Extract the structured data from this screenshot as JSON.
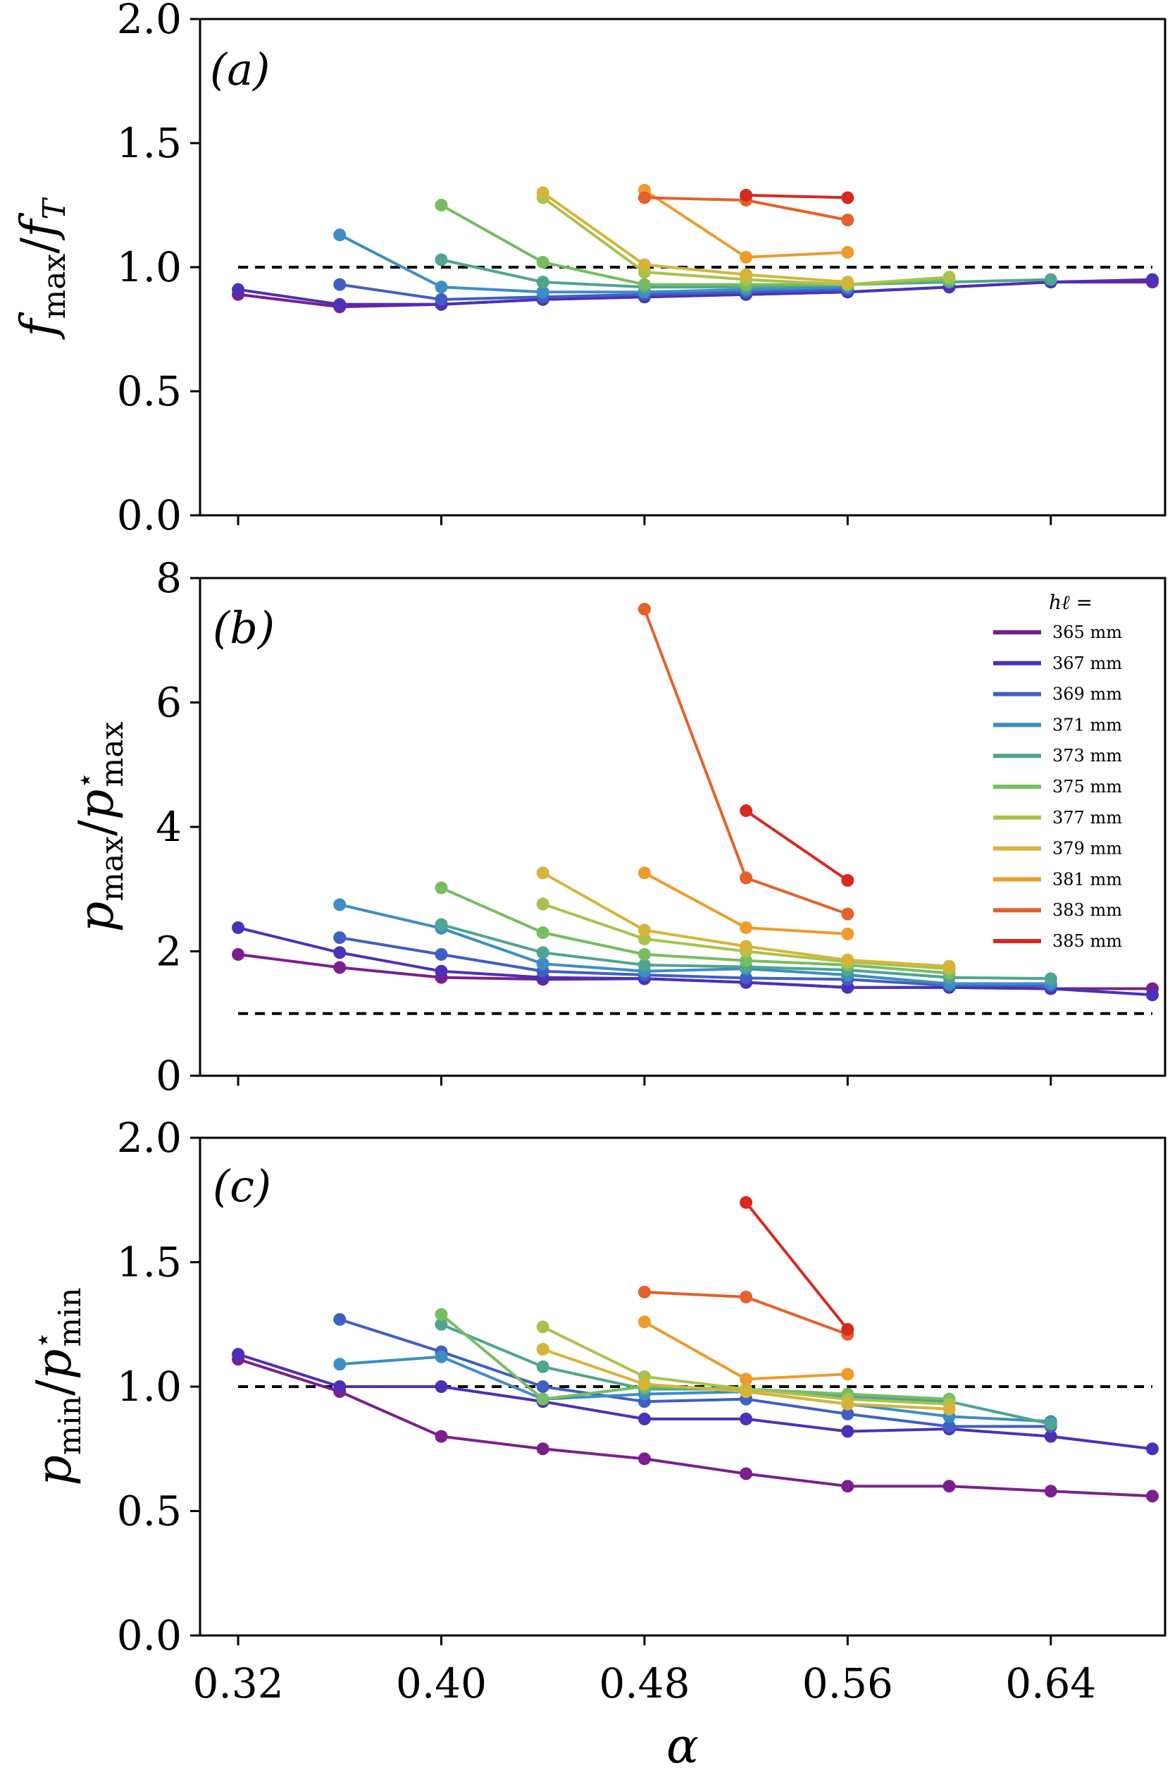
{
  "colors": {
    "365": "#7b1f8e",
    "367": "#4a31b8",
    "369": "#3f5fc2",
    "371": "#3c8ec4",
    "373": "#4fa58f",
    "375": "#76bd62",
    "377": "#a9c24b",
    "379": "#d6b43a",
    "381": "#ee9b2c",
    "383": "#e5602a",
    "385": "#d8281f",
    "reference": "#000000"
  },
  "xaxis": {
    "label": "α",
    "ticks": [
      "0.32",
      "0.40",
      "0.48",
      "0.56",
      "0.64"
    ],
    "lim": [
      0.305,
      0.685
    ]
  },
  "legend": {
    "title": "hℓ =",
    "entries": [
      "365 mm",
      "367 mm",
      "369 mm",
      "371 mm",
      "373 mm",
      "375 mm",
      "377 mm",
      "379 mm",
      "381 mm",
      "383 mm",
      "385 mm"
    ]
  },
  "chart_data": [
    {
      "type": "line",
      "panel": "(a)",
      "ylabel": "fmax/fT",
      "ylim": [
        0,
        2
      ],
      "yticks": [
        "0.0",
        "0.5",
        "1.0",
        "1.5",
        "2.0"
      ],
      "reference_line": 1.0,
      "series": [
        {
          "name": "365 mm",
          "color_key": "365",
          "x": [
            0.32,
            0.36,
            0.4,
            0.44,
            0.48,
            0.52,
            0.56,
            0.6,
            0.64,
            0.68
          ],
          "y": [
            0.89,
            0.84,
            0.85,
            0.87,
            0.88,
            0.89,
            0.9,
            0.92,
            0.94,
            0.94
          ]
        },
        {
          "name": "367 mm",
          "color_key": "367",
          "x": [
            0.32,
            0.36,
            0.4,
            0.44,
            0.48,
            0.52,
            0.56,
            0.6,
            0.64,
            0.68
          ],
          "y": [
            0.91,
            0.85,
            0.85,
            0.87,
            0.88,
            0.89,
            0.9,
            0.92,
            0.94,
            0.95
          ]
        },
        {
          "name": "369 mm",
          "color_key": "369",
          "x": [
            0.36,
            0.4,
            0.44,
            0.48,
            0.52,
            0.56
          ],
          "y": [
            0.93,
            0.87,
            0.88,
            0.89,
            0.9,
            0.91
          ]
        },
        {
          "name": "371 mm",
          "color_key": "371",
          "x": [
            0.36,
            0.4,
            0.44,
            0.48,
            0.52,
            0.56
          ],
          "y": [
            1.13,
            0.92,
            0.9,
            0.9,
            0.91,
            0.92
          ]
        },
        {
          "name": "373 mm",
          "color_key": "373",
          "x": [
            0.4,
            0.44,
            0.48,
            0.52,
            0.56,
            0.6,
            0.64
          ],
          "y": [
            1.03,
            0.94,
            0.92,
            0.92,
            0.93,
            0.94,
            0.95
          ]
        },
        {
          "name": "375 mm",
          "color_key": "375",
          "x": [
            0.4,
            0.44,
            0.48,
            0.52,
            0.56,
            0.6
          ],
          "y": [
            1.25,
            1.02,
            0.93,
            0.93,
            0.93,
            0.95
          ]
        },
        {
          "name": "377 mm",
          "color_key": "377",
          "x": [
            0.44,
            0.48,
            0.52,
            0.56,
            0.6
          ],
          "y": [
            1.28,
            0.98,
            0.95,
            0.93,
            0.96
          ]
        },
        {
          "name": "379 mm",
          "color_key": "379",
          "x": [
            0.44,
            0.48,
            0.52,
            0.56
          ],
          "y": [
            1.3,
            1.01,
            0.97,
            0.94
          ]
        },
        {
          "name": "381 mm",
          "color_key": "381",
          "x": [
            0.48,
            0.52,
            0.56
          ],
          "y": [
            1.31,
            1.04,
            1.06
          ]
        },
        {
          "name": "383 mm",
          "color_key": "383",
          "x": [
            0.48,
            0.52,
            0.56
          ],
          "y": [
            1.28,
            1.27,
            1.19
          ]
        },
        {
          "name": "385 mm",
          "color_key": "385",
          "x": [
            0.52,
            0.56
          ],
          "y": [
            1.29,
            1.28
          ]
        }
      ]
    },
    {
      "type": "line",
      "panel": "(b)",
      "ylabel": "pmax/p⋆max",
      "ylim": [
        0,
        8
      ],
      "yticks": [
        "0",
        "2",
        "4",
        "6",
        "8"
      ],
      "reference_line": 1.0,
      "series": [
        {
          "name": "365 mm",
          "color_key": "365",
          "x": [
            0.32,
            0.36,
            0.4,
            0.44,
            0.48,
            0.52,
            0.56,
            0.6,
            0.64,
            0.68
          ],
          "y": [
            1.95,
            1.74,
            1.58,
            1.55,
            1.56,
            1.5,
            1.42,
            1.42,
            1.4,
            1.4
          ]
        },
        {
          "name": "367 mm",
          "color_key": "367",
          "x": [
            0.32,
            0.36,
            0.4,
            0.44,
            0.48,
            0.52,
            0.56,
            0.6,
            0.64,
            0.68
          ],
          "y": [
            2.38,
            1.98,
            1.68,
            1.58,
            1.56,
            1.5,
            1.42,
            1.42,
            1.4,
            1.3
          ]
        },
        {
          "name": "369 mm",
          "color_key": "369",
          "x": [
            0.36,
            0.4,
            0.44,
            0.48,
            0.52,
            0.56,
            0.6,
            0.64
          ],
          "y": [
            2.22,
            1.95,
            1.68,
            1.62,
            1.57,
            1.55,
            1.45,
            1.45
          ]
        },
        {
          "name": "371 mm",
          "color_key": "371",
          "x": [
            0.36,
            0.4,
            0.44,
            0.48,
            0.52,
            0.56,
            0.6,
            0.64
          ],
          "y": [
            2.75,
            2.37,
            1.8,
            1.68,
            1.72,
            1.62,
            1.48,
            1.48
          ]
        },
        {
          "name": "373 mm",
          "color_key": "373",
          "x": [
            0.4,
            0.44,
            0.48,
            0.52,
            0.56,
            0.6,
            0.64
          ],
          "y": [
            2.43,
            1.98,
            1.78,
            1.75,
            1.7,
            1.58,
            1.56
          ]
        },
        {
          "name": "375 mm",
          "color_key": "375",
          "x": [
            0.4,
            0.44,
            0.48,
            0.52,
            0.56,
            0.6
          ],
          "y": [
            3.02,
            2.3,
            1.95,
            1.85,
            1.78,
            1.65
          ]
        },
        {
          "name": "377 mm",
          "color_key": "377",
          "x": [
            0.44,
            0.48,
            0.52,
            0.56,
            0.6
          ],
          "y": [
            2.76,
            2.2,
            2.0,
            1.83,
            1.72
          ]
        },
        {
          "name": "379 mm",
          "color_key": "379",
          "x": [
            0.44,
            0.48,
            0.52,
            0.56,
            0.6
          ],
          "y": [
            3.26,
            2.34,
            2.08,
            1.86,
            1.76
          ]
        },
        {
          "name": "381 mm",
          "color_key": "381",
          "x": [
            0.48,
            0.52,
            0.56
          ],
          "y": [
            3.26,
            2.38,
            2.28
          ]
        },
        {
          "name": "383 mm",
          "color_key": "383",
          "x": [
            0.48,
            0.52,
            0.56
          ],
          "y": [
            7.5,
            3.18,
            2.6
          ]
        },
        {
          "name": "385 mm",
          "color_key": "385",
          "x": [
            0.52,
            0.56
          ],
          "y": [
            4.26,
            3.14
          ]
        }
      ]
    },
    {
      "type": "line",
      "panel": "(c)",
      "ylabel": "pmin/p⋆min",
      "ylim": [
        0,
        2
      ],
      "yticks": [
        "0.0",
        "0.5",
        "1.0",
        "1.5",
        "2.0"
      ],
      "reference_line": 1.0,
      "series": [
        {
          "name": "365 mm",
          "color_key": "365",
          "x": [
            0.32,
            0.36,
            0.4,
            0.44,
            0.48,
            0.52,
            0.56,
            0.6,
            0.64,
            0.68
          ],
          "y": [
            1.11,
            0.98,
            0.8,
            0.75,
            0.71,
            0.65,
            0.6,
            0.6,
            0.58,
            0.56
          ]
        },
        {
          "name": "367 mm",
          "color_key": "367",
          "x": [
            0.32,
            0.36,
            0.4,
            0.44,
            0.48,
            0.52,
            0.56,
            0.6,
            0.64,
            0.68
          ],
          "y": [
            1.13,
            1.0,
            1.0,
            0.94,
            0.87,
            0.87,
            0.82,
            0.83,
            0.8,
            0.75
          ]
        },
        {
          "name": "369 mm",
          "color_key": "369",
          "x": [
            0.36,
            0.4,
            0.44,
            0.48,
            0.52,
            0.56,
            0.6,
            0.64
          ],
          "y": [
            1.27,
            1.14,
            1.0,
            0.94,
            0.95,
            0.89,
            0.84,
            0.84
          ]
        },
        {
          "name": "371 mm",
          "color_key": "371",
          "x": [
            0.36,
            0.4,
            0.44,
            0.48,
            0.52,
            0.56,
            0.6,
            0.64
          ],
          "y": [
            1.09,
            1.12,
            0.95,
            0.97,
            0.98,
            0.93,
            0.88,
            0.86
          ]
        },
        {
          "name": "373 mm",
          "color_key": "373",
          "x": [
            0.4,
            0.44,
            0.48,
            0.52,
            0.56,
            0.6,
            0.64
          ],
          "y": [
            1.25,
            1.08,
            0.99,
            0.99,
            0.96,
            0.94,
            0.85
          ]
        },
        {
          "name": "375 mm",
          "color_key": "375",
          "x": [
            0.4,
            0.44,
            0.48,
            0.52,
            0.56,
            0.6
          ],
          "y": [
            1.29,
            0.95,
            1.0,
            0.99,
            0.97,
            0.95
          ]
        },
        {
          "name": "377 mm",
          "color_key": "377",
          "x": [
            0.44,
            0.48,
            0.52,
            0.56,
            0.6
          ],
          "y": [
            1.24,
            1.04,
            0.99,
            0.95,
            0.93
          ]
        },
        {
          "name": "379 mm",
          "color_key": "379",
          "x": [
            0.44,
            0.48,
            0.52,
            0.56,
            0.6
          ],
          "y": [
            1.15,
            1.01,
            0.98,
            0.93,
            0.91
          ]
        },
        {
          "name": "381 mm",
          "color_key": "381",
          "x": [
            0.48,
            0.52,
            0.56
          ],
          "y": [
            1.26,
            1.03,
            1.05
          ]
        },
        {
          "name": "383 mm",
          "color_key": "383",
          "x": [
            0.48,
            0.52,
            0.56
          ],
          "y": [
            1.38,
            1.36,
            1.21
          ]
        },
        {
          "name": "385 mm",
          "color_key": "385",
          "x": [
            0.52,
            0.56
          ],
          "y": [
            1.74,
            1.23
          ]
        }
      ]
    }
  ]
}
